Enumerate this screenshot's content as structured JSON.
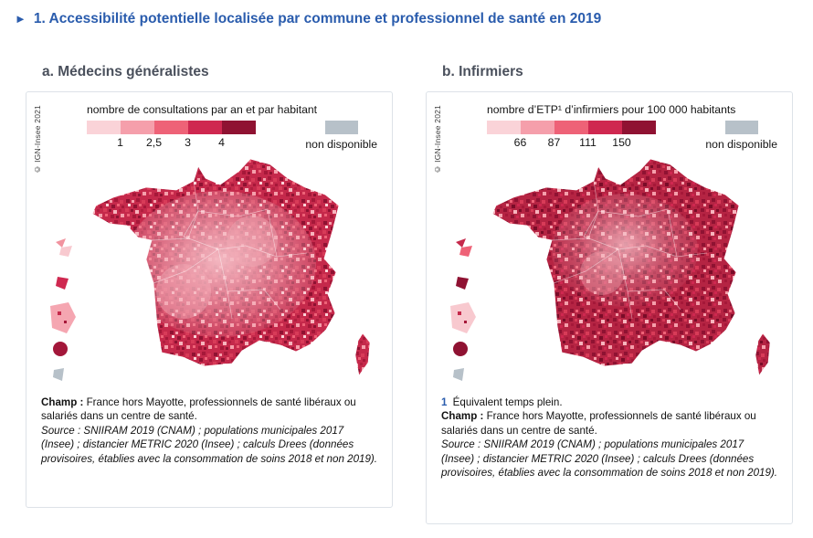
{
  "figure": {
    "marker": "►",
    "title": "1. Accessibilité potentielle localisée par commune et professionnel de santé en 2019"
  },
  "panels": [
    {
      "title": "a. Médecins généralistes",
      "copyright": "© IGN-Insee 2021",
      "legend": {
        "title": "nombre de consultations par an et par habitant",
        "colors": [
          "#fad3d8",
          "#f59fab",
          "#ee6277",
          "#cf2850",
          "#8f1232"
        ],
        "ticks": [
          "1",
          "2,5",
          "3",
          "4"
        ],
        "na_label": "non disponible",
        "na_color": "#b7c1c9"
      },
      "notes": {
        "champ_label": "Champ :",
        "champ_text": " France hors Mayotte, professionnels de santé libéraux ou salariés dans un centre de santé.",
        "source_text": "Source : SNIIRAM 2019 (CNAM) ; populations municipales 2017 (Insee) ; distancier METRIC 2020 (Insee) ; calculs Drees (données provisoires, établies avec la consommation de soins 2018 et non 2019)."
      }
    },
    {
      "title": "b. Infirmiers",
      "copyright": "© IGN-Insee 2021",
      "legend": {
        "title": "nombre d’ETP¹ d’infirmiers pour 100 000 habitants",
        "colors": [
          "#fad3d8",
          "#f59fab",
          "#ee6277",
          "#cf2850",
          "#8f1232"
        ],
        "ticks": [
          "66",
          "87",
          "111",
          "150"
        ],
        "na_label": "non disponible",
        "na_color": "#b7c1c9"
      },
      "footnote": {
        "num": "1",
        "text": " Équivalent temps plein."
      },
      "notes": {
        "champ_label": "Champ :",
        "champ_text": " France hors Mayotte, professionnels de santé libéraux ou salariés dans un centre de santé.",
        "source_text": "Source : SNIIRAM 2019 (CNAM) ; populations municipales 2017 (Insee) ; distancier METRIC 2020 (Insee) ; calculs Drees (données provisoires, établies avec la consommation de soins 2018 et non 2019)."
      }
    }
  ]
}
